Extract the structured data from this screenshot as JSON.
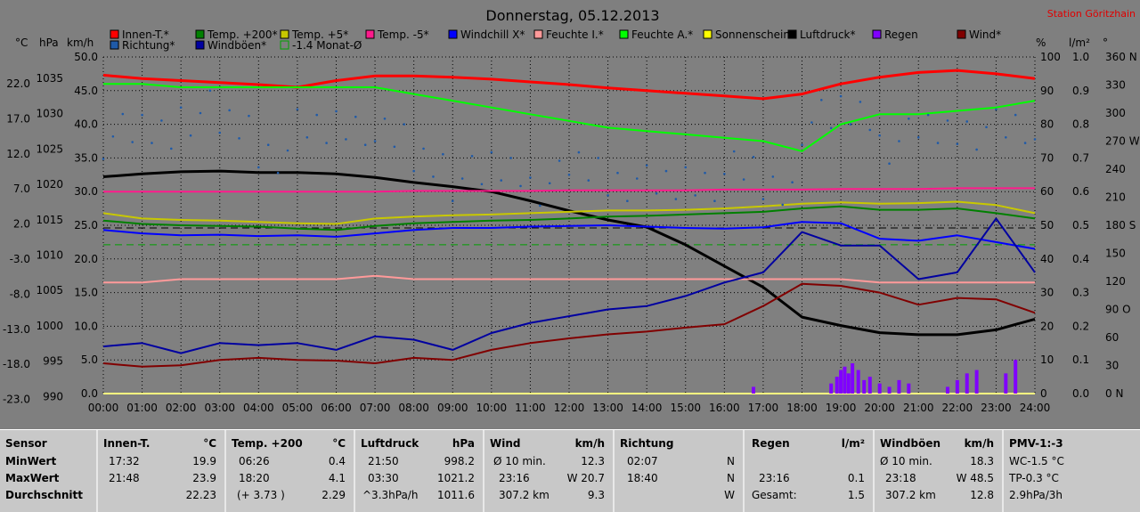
{
  "header": {
    "title": "Donnerstag, 05.12.2013",
    "station": "Station Göritzhain"
  },
  "legend": [
    {
      "label": "Innen-T.*",
      "color": "#ff0000",
      "hollow": false
    },
    {
      "label": "Temp. +200*",
      "color": "#008000",
      "hollow": false
    },
    {
      "label": "Temp. +5*",
      "color": "#c8c800",
      "hollow": false
    },
    {
      "label": "Temp. -5*",
      "color": "#ff1a8c",
      "hollow": false
    },
    {
      "label": "Windchill X*",
      "color": "#0000ff",
      "hollow": false
    },
    {
      "label": "Feuchte I.*",
      "color": "#ff9a9a",
      "hollow": false
    },
    {
      "label": "Feuchte A.*",
      "color": "#00ff00",
      "hollow": false
    },
    {
      "label": "Sonnenschein",
      "color": "#ffff00",
      "hollow": false
    },
    {
      "label": "Luftdruck*",
      "color": "#000000",
      "hollow": false
    },
    {
      "label": "Regen",
      "color": "#8000ff",
      "hollow": false
    },
    {
      "label": "Wind*",
      "color": "#800000",
      "hollow": false
    },
    {
      "label": "Richtung*",
      "color": "#1f5aa8",
      "hollow": false
    },
    {
      "label": "Windböen*",
      "color": "#0000a0",
      "hollow": false
    },
    {
      "label": "-1.4 Monat-Ø",
      "color": "#00a000",
      "hollow": true
    }
  ],
  "axes": {
    "temp_unit": "°C",
    "hpa_unit": "hPa",
    "kmh_unit": "km/h",
    "pct_unit": "%",
    "rain_unit": "l/m²",
    "deg_unit": "°",
    "temp_ticks": [
      "22.0",
      "17.0",
      "12.0",
      "7.0",
      "2.0",
      "-3.0",
      "-8.0",
      "-13.0",
      "-18.0",
      "-23.0"
    ],
    "hpa_ticks": [
      "1035",
      "1030",
      "1025",
      "1020",
      "1015",
      "1010",
      "1005",
      "1000",
      "995",
      "990"
    ],
    "kmh_ticks": [
      "50.0",
      "45.0",
      "40.0",
      "35.0",
      "30.0",
      "25.0",
      "20.0",
      "15.0",
      "10.0",
      "5.0",
      "0.0"
    ],
    "pct_ticks": [
      "100",
      "90",
      "80",
      "70",
      "60",
      "50",
      "40",
      "30",
      "20",
      "10",
      "0"
    ],
    "rain_ticks": [
      "1.0",
      "0.9",
      "0.8",
      "0.7",
      "0.6",
      "0.5",
      "0.4",
      "0.3",
      "0.2",
      "0.1",
      "0.0"
    ],
    "deg_ticks": [
      "360 N",
      "330",
      "300",
      "270 W",
      "240",
      "210",
      "180 S",
      "150",
      "120",
      "90 O",
      "60",
      "30",
      "0 N"
    ],
    "time_ticks": [
      "00:00",
      "01:00",
      "02:00",
      "03:00",
      "04:00",
      "05:00",
      "06:00",
      "07:00",
      "08:00",
      "09:00",
      "10:00",
      "11:00",
      "12:00",
      "13:00",
      "14:00",
      "15:00",
      "16:00",
      "17:00",
      "18:00",
      "19:00",
      "20:00",
      "21:00",
      "22:00",
      "23:00",
      "24:00"
    ]
  },
  "chart_data": {
    "type": "line",
    "title": "Donnerstag, 05.12.2013",
    "x": [
      0,
      1,
      2,
      3,
      4,
      5,
      6,
      7,
      8,
      9,
      10,
      11,
      12,
      13,
      14,
      15,
      16,
      17,
      18,
      19,
      20,
      21,
      22,
      23,
      24
    ],
    "xlim": [
      0,
      24
    ],
    "kmh_range": [
      0,
      50
    ],
    "grid": true,
    "series": [
      {
        "name": "Innen-T.*",
        "axis": "km/h",
        "color": "#ff0000",
        "values": [
          47.3,
          46.8,
          46.5,
          46.2,
          45.9,
          45.5,
          46.5,
          47.2,
          47.2,
          47.0,
          46.7,
          46.3,
          45.9,
          45.4,
          45.0,
          44.6,
          44.2,
          43.8,
          44.5,
          46.0,
          47.0,
          47.7,
          48.0,
          47.5,
          46.8
        ]
      },
      {
        "name": "Feuchte A.*",
        "axis": "%",
        "color": "#00ff00",
        "values": [
          92,
          92,
          91,
          91,
          91,
          91,
          91,
          91,
          89,
          87,
          85,
          83,
          81,
          79,
          78,
          77,
          76,
          75,
          72,
          80,
          83,
          83,
          84,
          85,
          87
        ]
      },
      {
        "name": "Luftdruck*",
        "axis": "hPa",
        "color": "#000000",
        "values": [
          1020.6,
          1021.0,
          1021.3,
          1021.4,
          1021.2,
          1021.2,
          1021.0,
          1020.5,
          1019.8,
          1019.2,
          1018.5,
          1017.2,
          1015.8,
          1014.5,
          1013.5,
          1011.0,
          1008.0,
          1005.0,
          1000.8,
          999.6,
          998.6,
          998.3,
          998.3,
          999.0,
          1000.5
        ]
      },
      {
        "name": "Temp. -5*",
        "axis": "km/h",
        "color": "#ff1a8c",
        "values": [
          30.0,
          30.0,
          30.0,
          30.0,
          30.0,
          30.0,
          30.0,
          30.0,
          30.1,
          30.1,
          30.1,
          30.1,
          30.2,
          30.2,
          30.2,
          30.2,
          30.3,
          30.3,
          30.3,
          30.4,
          30.4,
          30.4,
          30.5,
          30.5,
          30.5
        ]
      },
      {
        "name": "Temp. +5*",
        "axis": "km/h",
        "color": "#c8c800",
        "values": [
          26.8,
          26.0,
          25.8,
          25.7,
          25.5,
          25.3,
          25.2,
          26.0,
          26.3,
          26.5,
          26.6,
          26.8,
          27.0,
          27.2,
          27.2,
          27.3,
          27.5,
          27.8,
          28.2,
          28.4,
          28.2,
          28.3,
          28.5,
          28.0,
          26.8
        ]
      },
      {
        "name": "Temp. +200*",
        "axis": "km/h",
        "color": "#008000",
        "values": [
          25.7,
          25.2,
          25.0,
          24.9,
          24.8,
          24.5,
          24.3,
          24.9,
          25.3,
          25.5,
          25.7,
          25.8,
          26.0,
          26.3,
          26.4,
          26.6,
          26.8,
          27.0,
          27.5,
          27.8,
          27.3,
          27.3,
          27.5,
          26.8,
          26.0
        ]
      },
      {
        "name": "Windchill X*",
        "axis": "km/h",
        "color": "#0000ff",
        "values": [
          24.3,
          23.8,
          23.5,
          23.6,
          23.4,
          23.5,
          23.3,
          23.8,
          24.3,
          24.6,
          24.6,
          24.8,
          24.9,
          25.0,
          24.8,
          24.6,
          24.5,
          24.7,
          25.5,
          25.3,
          23.0,
          22.7,
          23.5,
          22.5,
          21.5
        ]
      },
      {
        "name": "Feuchte I.*",
        "axis": "%",
        "color": "#ff9a9a",
        "values": [
          33,
          33,
          34,
          34,
          34,
          34,
          34,
          35,
          34,
          34,
          34,
          34,
          34,
          34,
          34,
          34,
          34,
          34,
          34,
          34,
          33,
          33,
          33,
          33,
          33
        ]
      },
      {
        "name": "Wind*",
        "axis": "km/h",
        "color": "#800000",
        "values": [
          4.5,
          4.0,
          4.2,
          5.0,
          5.3,
          5.0,
          4.9,
          4.5,
          5.3,
          5.0,
          6.5,
          7.5,
          8.2,
          8.8,
          9.2,
          9.8,
          10.3,
          13.0,
          16.3,
          16.0,
          15.0,
          13.2,
          14.2,
          14.0,
          12.0
        ]
      },
      {
        "name": "Windböen*",
        "axis": "km/h",
        "color": "#0000a0",
        "values": [
          7.0,
          7.5,
          6.0,
          7.5,
          7.2,
          7.5,
          6.5,
          8.5,
          8.0,
          6.5,
          9.0,
          10.5,
          11.5,
          12.5,
          13.0,
          14.5,
          16.5,
          18.0,
          24.0,
          22.0,
          22.0,
          17.0,
          18.0,
          26.0,
          18.0
        ]
      },
      {
        "name": "Richtung*",
        "axis": "°",
        "color": "#1f5aa8",
        "values": [
          275,
          280,
          300,
          285,
          260,
          280,
          290,
          270,
          250,
          230,
          240,
          225,
          240,
          230,
          220,
          230,
          235,
          220,
          290,
          300,
          270,
          280,
          285,
          280,
          260
        ]
      }
    ],
    "rain": {
      "axis": "l/m²",
      "color": "#8000ff",
      "x": [
        16.75,
        18.75,
        18.9,
        19.0,
        19.1,
        19.2,
        19.3,
        19.45,
        19.6,
        19.75,
        20.0,
        20.25,
        20.5,
        20.75,
        21.75,
        22.0,
        22.25,
        22.5,
        23.25,
        23.5
      ],
      "values": [
        0.02,
        0.03,
        0.05,
        0.07,
        0.08,
        0.06,
        0.09,
        0.07,
        0.04,
        0.05,
        0.03,
        0.02,
        0.04,
        0.03,
        0.02,
        0.04,
        0.06,
        0.07,
        0.06,
        0.1
      ]
    },
    "reference_lines": [
      {
        "name": "-1.4 Monat-Ø",
        "axis": "km/h",
        "value": 22.1,
        "color": "#00a000",
        "dash": true
      },
      {
        "name": "0°C",
        "axis": "km/h",
        "value": 24.6,
        "color": "#000000",
        "dash": true
      }
    ]
  },
  "stats": {
    "sensor": {
      "header": "Sensor",
      "rows": [
        "MinWert",
        "MaxWert",
        "Durchschnitt"
      ]
    },
    "innen": {
      "header": "Innen-T.",
      "unit": "°C",
      "rows": [
        [
          "17:32",
          "19.9"
        ],
        [
          "21:48",
          "23.9"
        ],
        [
          "",
          "22.23"
        ]
      ]
    },
    "temp200": {
      "header": "Temp. +200",
      "unit": "°C",
      "rows": [
        [
          "06:26",
          "0.4"
        ],
        [
          "18:20",
          "4.1"
        ],
        [
          "(+ 3.73 )",
          "2.29"
        ]
      ]
    },
    "luftdruck": {
      "header": "Luftdruck",
      "unit": "hPa",
      "rows": [
        [
          "21:50",
          "998.2"
        ],
        [
          "03:30",
          "1021.2"
        ],
        [
          "^3.3hPa/h",
          "1011.6"
        ]
      ]
    },
    "wind": {
      "header": "Wind",
      "unit": "km/h",
      "rows": [
        [
          "Ø 10 min.",
          "12.3"
        ],
        [
          "23:16",
          "W 20.7"
        ],
        [
          "307.2 km",
          "9.3"
        ]
      ]
    },
    "richtung": {
      "header": "Richtung",
      "unit": "",
      "rows": [
        [
          "02:07",
          "N"
        ],
        [
          "18:40",
          "N"
        ],
        [
          "",
          "W"
        ]
      ]
    },
    "regen": {
      "header": "Regen",
      "unit": "l/m²",
      "rows": [
        [
          "",
          ""
        ],
        [
          "23:16",
          "0.1"
        ],
        [
          "Gesamt:",
          "1.5"
        ]
      ]
    },
    "boeen": {
      "header": "Windböen",
      "unit": "km/h",
      "rows": [
        [
          "Ø 10 min.",
          "18.3"
        ],
        [
          "23:18",
          "W 48.5"
        ],
        [
          "307.2 km",
          "12.8"
        ]
      ]
    },
    "pmv": {
      "header": "PMV-1:-3",
      "rows": [
        "WC-1.5 °C",
        "TP-0.3 °C",
        "2.9hPa/3h"
      ]
    }
  }
}
